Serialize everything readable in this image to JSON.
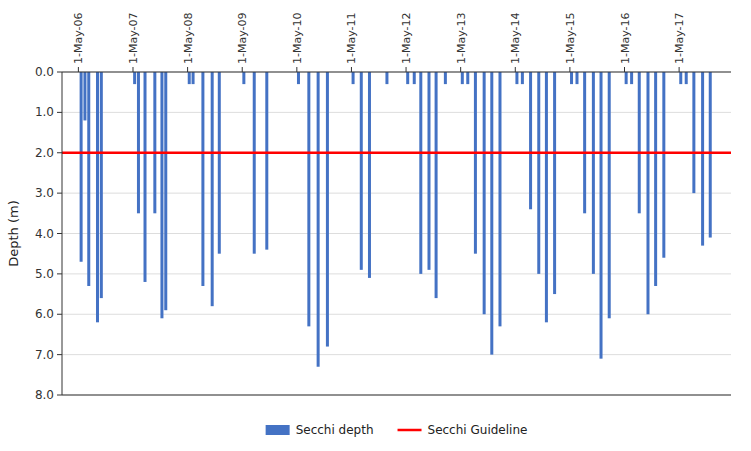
{
  "chart_data": {
    "type": "bar",
    "ylabel": "Depth (m)",
    "x": [
      0.05,
      0.12,
      0.19,
      0.35,
      0.42,
      1.03,
      1.1,
      1.22,
      1.4,
      1.53,
      1.6,
      2.03,
      2.1,
      2.28,
      2.45,
      2.58,
      3.03,
      3.22,
      3.45,
      4.03,
      4.22,
      4.39,
      4.56,
      5.03,
      5.18,
      5.33,
      5.65,
      6.03,
      6.15,
      6.27,
      6.42,
      6.55,
      6.72,
      7.03,
      7.13,
      7.27,
      7.43,
      7.57,
      7.72,
      8.03,
      8.13,
      8.28,
      8.43,
      8.57,
      8.72,
      9.03,
      9.13,
      9.27,
      9.43,
      9.57,
      9.72,
      10.03,
      10.13,
      10.27,
      10.43,
      10.57,
      10.72,
      11.03,
      11.13,
      11.27,
      11.43,
      11.57
    ],
    "series": [
      {
        "name": "Secchi depth",
        "color": "#4472C4",
        "values": [
          4.7,
          1.2,
          5.3,
          6.2,
          5.6,
          0.3,
          3.5,
          5.2,
          3.5,
          6.1,
          5.9,
          0.3,
          0.3,
          5.3,
          5.8,
          4.5,
          0.3,
          4.5,
          4.4,
          0.3,
          6.3,
          7.3,
          6.8,
          0.3,
          4.9,
          5.1,
          0.3,
          0.3,
          0.3,
          5.0,
          4.9,
          5.6,
          0.3,
          0.3,
          0.3,
          4.5,
          6.0,
          7.0,
          6.3,
          0.3,
          0.3,
          3.4,
          5.0,
          6.2,
          5.5,
          0.3,
          0.3,
          3.5,
          5.0,
          7.1,
          6.1,
          0.3,
          0.3,
          3.5,
          6.0,
          5.3,
          4.6,
          0.3,
          0.3,
          3.0,
          4.3,
          4.1
        ]
      }
    ],
    "reference_lines": [
      {
        "name": "Secchi Guideline",
        "value": 2.0,
        "color": "#FF0000"
      }
    ],
    "xlim": [
      -0.3,
      11.95
    ],
    "xticks": [
      {
        "value": 0,
        "label": "1-May-06"
      },
      {
        "value": 1,
        "label": "1-May-07"
      },
      {
        "value": 2,
        "label": "1-May-08"
      },
      {
        "value": 3,
        "label": "1-May-09"
      },
      {
        "value": 4,
        "label": "1-May-10"
      },
      {
        "value": 5,
        "label": "1-May-11"
      },
      {
        "value": 6,
        "label": "1-May-12"
      },
      {
        "value": 7,
        "label": "1-May-13"
      },
      {
        "value": 8,
        "label": "1-May-14"
      },
      {
        "value": 9,
        "label": "1-May-15"
      },
      {
        "value": 10,
        "label": "1-May-16"
      },
      {
        "value": 11,
        "label": "1-May-17"
      }
    ],
    "ylim": [
      8.0,
      0.0
    ],
    "yticks": [
      {
        "value": 0.0,
        "label": "0.0"
      },
      {
        "value": 1.0,
        "label": "1.0"
      },
      {
        "value": 2.0,
        "label": "2.0"
      },
      {
        "value": 3.0,
        "label": "3.0"
      },
      {
        "value": 4.0,
        "label": "4.0"
      },
      {
        "value": 5.0,
        "label": "5.0"
      },
      {
        "value": 6.0,
        "label": "6.0"
      },
      {
        "value": 7.0,
        "label": "7.0"
      },
      {
        "value": 8.0,
        "label": "8.0"
      }
    ],
    "grid": true,
    "legend": "bottom"
  }
}
